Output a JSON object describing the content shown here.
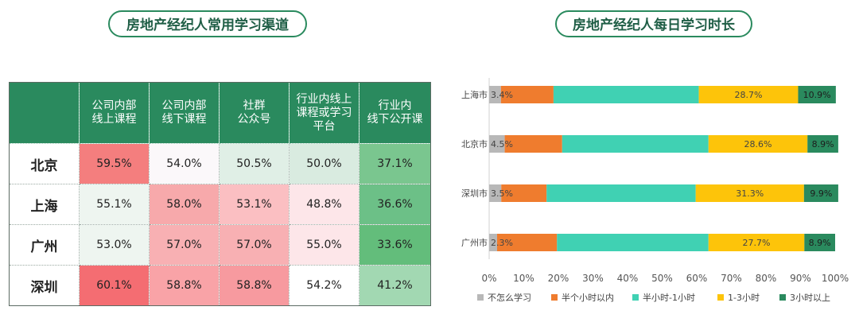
{
  "left_panel": {
    "title": "房地产经纪人常用学习渠道",
    "columns": [
      "公司内部\n线上课程",
      "公司内部\n线下课程",
      "社群\n公众号",
      "行业内线上\n课程或学习\n平台",
      "行业内\n线下公开课"
    ],
    "rows": [
      {
        "city": "北京",
        "cells": [
          {
            "text": "59.5%",
            "color": "#f47e7e"
          },
          {
            "text": "54.0%",
            "color": "#fbf8fa"
          },
          {
            "text": "50.5%",
            "color": "#e0efe6"
          },
          {
            "text": "50.0%",
            "color": "#d9ebe0"
          },
          {
            "text": "37.1%",
            "color": "#7ac68f"
          }
        ]
      },
      {
        "city": "上海",
        "cells": [
          {
            "text": "55.1%",
            "color": "#eef5f0"
          },
          {
            "text": "58.0%",
            "color": "#f7a9ab"
          },
          {
            "text": "53.1%",
            "color": "#fbbfc2"
          },
          {
            "text": "48.8%",
            "color": "#fde6e9"
          },
          {
            "text": "36.6%",
            "color": "#6cc087"
          }
        ]
      },
      {
        "city": "广州",
        "cells": [
          {
            "text": "53.0%",
            "color": "#eef5f0"
          },
          {
            "text": "57.0%",
            "color": "#f8b0b3"
          },
          {
            "text": "57.0%",
            "color": "#f8b0b3"
          },
          {
            "text": "55.0%",
            "color": "#fde6e9"
          },
          {
            "text": "33.6%",
            "color": "#63bd7b"
          }
        ]
      },
      {
        "city": "深圳",
        "cells": [
          {
            "text": "60.1%",
            "color": "#f46d72"
          },
          {
            "text": "58.8%",
            "color": "#f9a3a7"
          },
          {
            "text": "58.8%",
            "color": "#f79a9f"
          },
          {
            "text": "54.2%",
            "color": "#ffffff"
          },
          {
            "text": "41.2%",
            "color": "#a2d8b2"
          }
        ]
      }
    ]
  },
  "chart_data": {
    "type": "bar",
    "orientation": "horizontal",
    "stacked": true,
    "title": "房地产经纪人每日学习时长",
    "categories": [
      "上海市",
      "北京市",
      "深圳市",
      "广州市"
    ],
    "series": [
      {
        "name": "不怎么学习",
        "color": "#b8b8b8",
        "values": [
          3.4,
          4.5,
          3.5,
          2.3
        ]
      },
      {
        "name": "半个小时以内",
        "color": "#ef7c2e",
        "values": [
          15.2,
          16.6,
          13.1,
          17.3
        ]
      },
      {
        "name": "半小时-1小时",
        "color": "#40d1b3",
        "values": [
          42.0,
          42.3,
          43.1,
          43.8
        ]
      },
      {
        "name": "1-3小时",
        "color": "#fdc40a",
        "values": [
          28.7,
          28.6,
          31.3,
          27.7
        ]
      },
      {
        "name": "3小时以上",
        "color": "#2a8a5e",
        "values": [
          10.9,
          8.9,
          9.9,
          8.9
        ]
      }
    ],
    "data_labels": [
      {
        "category": "上海市",
        "items": [
          "3.4%",
          "28.7%",
          "10.9%"
        ]
      },
      {
        "category": "北京市",
        "items": [
          "4.5%",
          "28.6%",
          "8.9%"
        ]
      },
      {
        "category": "深圳市",
        "items": [
          "3.5%",
          "31.3%",
          "9.9%"
        ]
      },
      {
        "category": "广州市",
        "items": [
          "2.3%",
          "27.7%",
          "8.9%"
        ]
      }
    ],
    "xlim": [
      0,
      100
    ],
    "x_ticks": [
      "0%",
      "10%",
      "20%",
      "30%",
      "40%",
      "50%",
      "60%",
      "70%",
      "80%",
      "90%",
      "100%"
    ],
    "legend_position": "bottom",
    "grid": false
  }
}
